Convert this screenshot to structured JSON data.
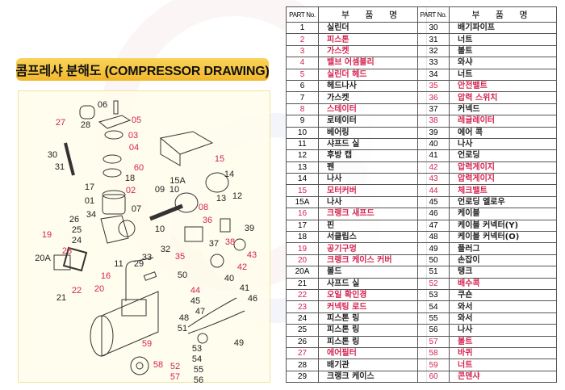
{
  "title": "콤프레샤 분해도 (COMPRESSOR DRAWING)",
  "colors": {
    "accent_red": "#d42450",
    "title_yellow": "#f5c53a",
    "text": "#222222"
  },
  "table": {
    "header_part": "PART No.",
    "header_name": "부 품 명",
    "left_rows": [
      {
        "no": "1",
        "name": "실린더",
        "red": false
      },
      {
        "no": "2",
        "name": "피스톤",
        "red": true
      },
      {
        "no": "3",
        "name": "가스켓",
        "red": true
      },
      {
        "no": "4",
        "name": "밸브 어셈블리",
        "red": true
      },
      {
        "no": "5",
        "name": "실린더 헤드",
        "red": true
      },
      {
        "no": "6",
        "name": "헤드나사",
        "red": false
      },
      {
        "no": "7",
        "name": "가스켓",
        "red": false
      },
      {
        "no": "8",
        "name": "스테이터",
        "red": true
      },
      {
        "no": "9",
        "name": "로테이터",
        "red": false
      },
      {
        "no": "10",
        "name": "베어링",
        "red": false
      },
      {
        "no": "11",
        "name": "샤프드 실",
        "red": false
      },
      {
        "no": "12",
        "name": "후방 캡",
        "red": false
      },
      {
        "no": "13",
        "name": "펜",
        "red": false
      },
      {
        "no": "14",
        "name": "나사",
        "red": false
      },
      {
        "no": "15",
        "name": "모터커버",
        "red": true
      },
      {
        "no": "15A",
        "name": "나사",
        "red": false
      },
      {
        "no": "16",
        "name": "크랭크 새프드",
        "red": true
      },
      {
        "no": "17",
        "name": "핀",
        "red": false
      },
      {
        "no": "18",
        "name": "서클립스",
        "red": false
      },
      {
        "no": "19",
        "name": "공기구멍",
        "red": true
      },
      {
        "no": "20",
        "name": "크랭크 케이스 커버",
        "red": true
      },
      {
        "no": "20A",
        "name": "볼드",
        "red": false
      },
      {
        "no": "21",
        "name": "사프드 실",
        "red": false
      },
      {
        "no": "22",
        "name": "오일 확인경",
        "red": true
      },
      {
        "no": "23",
        "name": "커넥팅 로드",
        "red": true
      },
      {
        "no": "24",
        "name": "피스톤 링",
        "red": false
      },
      {
        "no": "25",
        "name": "피스톤 링",
        "red": false
      },
      {
        "no": "26",
        "name": "피스톤 링",
        "red": false
      },
      {
        "no": "27",
        "name": "에어필터",
        "red": true
      },
      {
        "no": "28",
        "name": "배기관",
        "red": false
      },
      {
        "no": "29",
        "name": "크랭크 케이스",
        "red": false
      }
    ],
    "right_rows": [
      {
        "no": "30",
        "name": "배기파이프",
        "red": false
      },
      {
        "no": "31",
        "name": "너트",
        "red": false
      },
      {
        "no": "32",
        "name": "볼트",
        "red": false
      },
      {
        "no": "33",
        "name": "와샤",
        "red": false
      },
      {
        "no": "34",
        "name": "너트",
        "red": false
      },
      {
        "no": "35",
        "name": "안전밸트",
        "red": true
      },
      {
        "no": "36",
        "name": "압력 스위치",
        "red": true
      },
      {
        "no": "37",
        "name": "커넥드",
        "red": false
      },
      {
        "no": "38",
        "name": "레귤레이터",
        "red": true
      },
      {
        "no": "39",
        "name": "에어 콕",
        "red": false
      },
      {
        "no": "40",
        "name": "나사",
        "red": false
      },
      {
        "no": "41",
        "name": "언로딩",
        "red": false
      },
      {
        "no": "42",
        "name": "압력게이지",
        "red": true
      },
      {
        "no": "43",
        "name": "압력게이지",
        "red": true
      },
      {
        "no": "44",
        "name": "체크밸트",
        "red": true
      },
      {
        "no": "45",
        "name": "언로딩 엘로우",
        "red": false
      },
      {
        "no": "46",
        "name": "케이블",
        "red": false
      },
      {
        "no": "47",
        "name": "케이블 커넥터(Y)",
        "red": false
      },
      {
        "no": "48",
        "name": "케이블 커넥터(O)",
        "red": false
      },
      {
        "no": "49",
        "name": "플러그",
        "red": false
      },
      {
        "no": "50",
        "name": "손잡이",
        "red": false
      },
      {
        "no": "51",
        "name": "탱크",
        "red": false
      },
      {
        "no": "52",
        "name": "배수콕",
        "red": true
      },
      {
        "no": "53",
        "name": "쿠숀",
        "red": false
      },
      {
        "no": "54",
        "name": "와서",
        "red": false
      },
      {
        "no": "55",
        "name": "와서",
        "red": false
      },
      {
        "no": "56",
        "name": "나사",
        "red": false
      },
      {
        "no": "57",
        "name": "볼트",
        "red": true
      },
      {
        "no": "58",
        "name": "바퀴",
        "red": true
      },
      {
        "no": "59",
        "name": "너트",
        "red": true
      },
      {
        "no": "60",
        "name": "콘덴샤",
        "red": true
      }
    ]
  },
  "diagram": {
    "labels": [
      {
        "t": "06",
        "red": false
      },
      {
        "t": "05",
        "red": true
      },
      {
        "t": "27",
        "red": true
      },
      {
        "t": "28",
        "red": false
      },
      {
        "t": "03",
        "red": true
      },
      {
        "t": "04",
        "red": true
      },
      {
        "t": "30",
        "red": false
      },
      {
        "t": "31",
        "red": false
      },
      {
        "t": "60",
        "red": true
      },
      {
        "t": "15",
        "red": true
      },
      {
        "t": "14",
        "red": false
      },
      {
        "t": "15A",
        "red": false
      },
      {
        "t": "18",
        "red": false
      },
      {
        "t": "17",
        "red": false
      },
      {
        "t": "02",
        "red": true
      },
      {
        "t": "09",
        "red": false
      },
      {
        "t": "10",
        "red": false
      },
      {
        "t": "12",
        "red": false
      },
      {
        "t": "13",
        "red": false
      },
      {
        "t": "01",
        "red": false
      },
      {
        "t": "07",
        "red": false
      },
      {
        "t": "08",
        "red": true
      },
      {
        "t": "26",
        "red": false
      },
      {
        "t": "34",
        "red": false
      },
      {
        "t": "36",
        "red": true
      },
      {
        "t": "39",
        "red": false
      },
      {
        "t": "25",
        "red": false
      },
      {
        "t": "24",
        "red": false
      },
      {
        "t": "19",
        "red": true
      },
      {
        "t": "10",
        "red": false
      },
      {
        "t": "23",
        "red": true
      },
      {
        "t": "20A",
        "red": false
      },
      {
        "t": "38",
        "red": true
      },
      {
        "t": "37",
        "red": false
      },
      {
        "t": "43",
        "red": true
      },
      {
        "t": "32",
        "red": false
      },
      {
        "t": "33",
        "red": false
      },
      {
        "t": "35",
        "red": true
      },
      {
        "t": "11",
        "red": false
      },
      {
        "t": "29",
        "red": false
      },
      {
        "t": "16",
        "red": true
      },
      {
        "t": "42",
        "red": true
      },
      {
        "t": "40",
        "red": false
      },
      {
        "t": "20",
        "red": true
      },
      {
        "t": "22",
        "red": true
      },
      {
        "t": "50",
        "red": false
      },
      {
        "t": "41",
        "red": false
      },
      {
        "t": "21",
        "red": false
      },
      {
        "t": "44",
        "red": true
      },
      {
        "t": "46",
        "red": false
      },
      {
        "t": "45",
        "red": false
      },
      {
        "t": "47",
        "red": false
      },
      {
        "t": "48",
        "red": false
      },
      {
        "t": "51",
        "red": false
      },
      {
        "t": "49",
        "red": false
      },
      {
        "t": "59",
        "red": true
      },
      {
        "t": "53",
        "red": false
      },
      {
        "t": "54",
        "red": false
      },
      {
        "t": "55",
        "red": false
      },
      {
        "t": "58",
        "red": true
      },
      {
        "t": "52",
        "red": true
      },
      {
        "t": "56",
        "red": false
      },
      {
        "t": "57",
        "red": true
      }
    ]
  }
}
